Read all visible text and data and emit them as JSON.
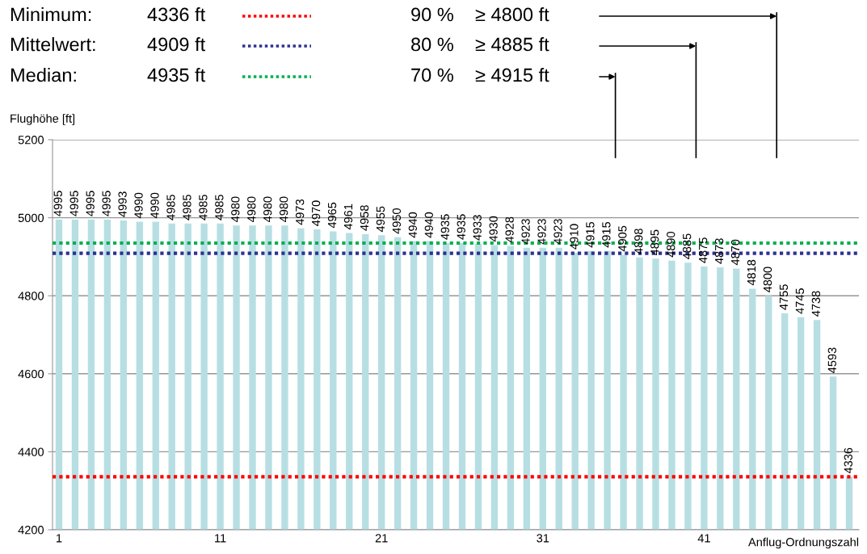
{
  "chart_data": {
    "type": "bar",
    "xlabel": "Anflug-Ordnungszahl",
    "ylabel": "Flughöhe [ft]",
    "categories": [
      "1",
      null,
      null,
      null,
      null,
      null,
      null,
      null,
      null,
      null,
      "11",
      null,
      null,
      null,
      null,
      null,
      null,
      null,
      null,
      null,
      "21",
      null,
      null,
      null,
      null,
      null,
      null,
      null,
      null,
      null,
      "31",
      null,
      null,
      null,
      null,
      null,
      null,
      null,
      null,
      null,
      "41",
      null,
      null,
      null,
      null,
      null,
      null,
      null,
      null,
      null
    ],
    "values": [
      4995,
      4995,
      4995,
      4995,
      4993,
      4990,
      4990,
      4985,
      4985,
      4985,
      4985,
      4980,
      4980,
      4980,
      4980,
      4973,
      4970,
      4965,
      4961,
      4958,
      4955,
      4950,
      4940,
      4940,
      4935,
      4935,
      4933,
      4930,
      4928,
      4923,
      4923,
      4923,
      4910,
      4915,
      4915,
      4905,
      4898,
      4895,
      4890,
      4885,
      4875,
      4873,
      4870,
      4818,
      4800,
      4755,
      4745,
      4738,
      4593,
      4336
    ],
    "color": "#b7dfe3",
    "data_labels": true,
    "legend": "top left",
    "ylim": [
      4200,
      5200
    ],
    "yticks": [
      4200,
      4400,
      4600,
      4800,
      5000,
      5200
    ],
    "grid": "y",
    "ref_lines": [
      {
        "axis": "y",
        "value": 4336,
        "label": "4336 ft",
        "color": "#ff0000",
        "line_style": "dotted"
      },
      {
        "axis": "y",
        "value": 4909,
        "label": "4909 ft",
        "color": "#2e3192",
        "line_style": "dotted"
      },
      {
        "axis": "y",
        "value": 4935,
        "label": "4935 ft",
        "color": "#00b050",
        "line_style": "dotted"
      }
    ],
    "annotations": [
      "Minimum:",
      "Mittelwert:",
      "Median:",
      "90 %",
      "≥ 4800 ft",
      "80 %",
      "≥ 4885 ft",
      "70 %",
      "≥ 4915 ft"
    ]
  }
}
